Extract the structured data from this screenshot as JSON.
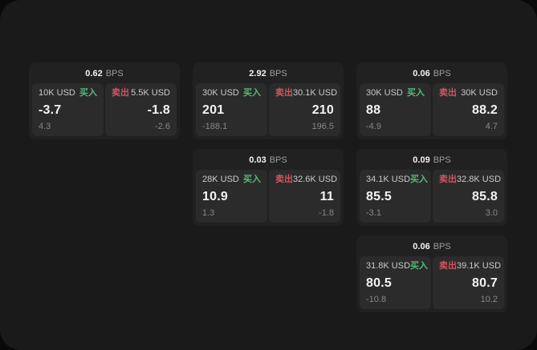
{
  "labels": {
    "buy": "买入",
    "sell": "卖出",
    "bps": "BPS"
  },
  "colors": {
    "buy": "#54b87b",
    "sell": "#d25460",
    "panel_bg": "#1a1a1a",
    "card_bg": "#212121",
    "subcard_bg": "#2b2b2b"
  },
  "cards": [
    {
      "bps": "0.62",
      "buy": {
        "amount": "10K USD",
        "price": "-3.7",
        "delta": "4.3"
      },
      "sell": {
        "amount": "5.5K USD",
        "price": "-1.8",
        "delta": "-2.6"
      }
    },
    {
      "bps": "2.92",
      "buy": {
        "amount": "30K USD",
        "price": "201",
        "delta": "-188.1"
      },
      "sell": {
        "amount": "30.1K USD",
        "price": "210",
        "delta": "196.5"
      }
    },
    {
      "bps": "0.06",
      "buy": {
        "amount": "30K USD",
        "price": "88",
        "delta": "-4.9"
      },
      "sell": {
        "amount": "30K USD",
        "price": "88.2",
        "delta": "4.7"
      }
    },
    {
      "bps": "0.03",
      "buy": {
        "amount": "28K USD",
        "price": "10.9",
        "delta": "1.3"
      },
      "sell": {
        "amount": "32.6K USD",
        "price": "11",
        "delta": "-1.8"
      }
    },
    {
      "bps": "0.09",
      "buy": {
        "amount": "34.1K USD",
        "price": "85.5",
        "delta": "-3.1"
      },
      "sell": {
        "amount": "32.8K USD",
        "price": "85.8",
        "delta": "3.0"
      }
    },
    {
      "bps": "0.06",
      "buy": {
        "amount": "31.8K USD",
        "price": "80.5",
        "delta": "-10.8"
      },
      "sell": {
        "amount": "39.1K USD",
        "price": "80.7",
        "delta": "10.2"
      }
    }
  ]
}
